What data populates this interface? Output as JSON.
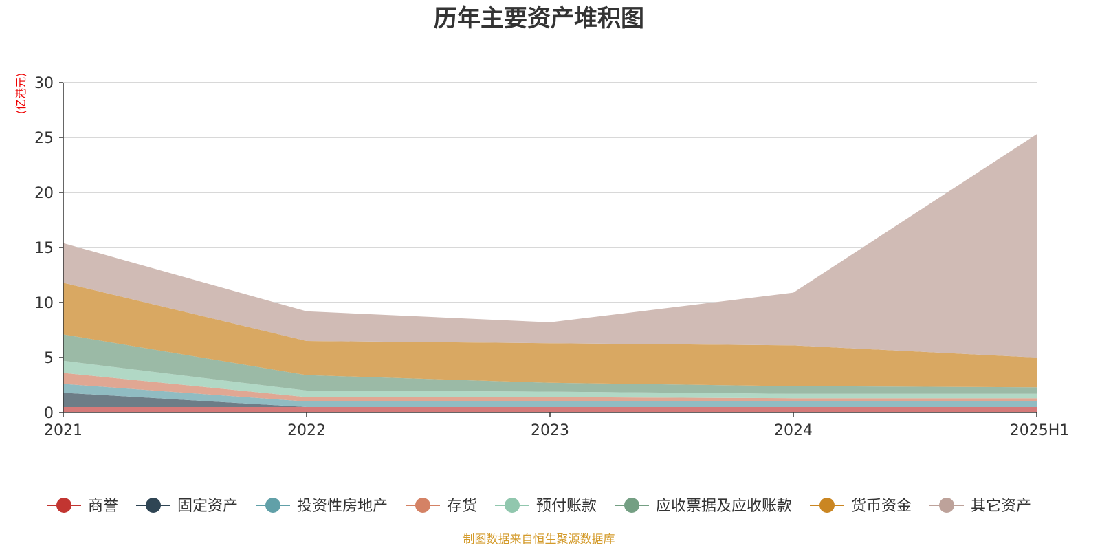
{
  "chart_data": {
    "type": "area",
    "title": "历年主要资产堆积图",
    "unit_label": "(亿港元)",
    "categories": [
      "2021",
      "2022",
      "2023",
      "2024",
      "2025H1"
    ],
    "ylim": [
      0,
      30
    ],
    "yticks": [
      "0",
      "5",
      "10",
      "15",
      "20",
      "25",
      "30"
    ],
    "grid": true,
    "legend_position": "bottom",
    "series": [
      {
        "name": "商誉",
        "values": [
          0.5,
          0.5,
          0.5,
          0.5,
          0.5
        ],
        "color": "#c23531",
        "fill": "#d57a79"
      },
      {
        "name": "固定资产",
        "values": [
          1.3,
          0.0,
          0.0,
          0.0,
          0.0
        ],
        "color": "#2f4554",
        "fill": "#6d7d87"
      },
      {
        "name": "投资性房地产",
        "values": [
          0.8,
          0.5,
          0.5,
          0.5,
          0.5
        ],
        "color": "#61a0a8",
        "fill": "#90bcc2"
      },
      {
        "name": "存货",
        "values": [
          1.0,
          0.4,
          0.4,
          0.3,
          0.3
        ],
        "color": "#d48265",
        "fill": "#e0a793"
      },
      {
        "name": "预付账款",
        "values": [
          1.1,
          0.6,
          0.5,
          0.4,
          0.4
        ],
        "color": "#91c7ae",
        "fill": "#b1d8c5"
      },
      {
        "name": "应收票据及应收账款",
        "values": [
          2.4,
          1.4,
          0.8,
          0.7,
          0.6
        ],
        "color": "#749f83",
        "fill": "#9bbaa6"
      },
      {
        "name": "货币资金",
        "values": [
          4.7,
          3.1,
          3.6,
          3.7,
          2.7
        ],
        "color": "#ca8622",
        "fill": "#d9a862"
      },
      {
        "name": "其它资产",
        "values": [
          3.6,
          2.7,
          1.9,
          4.8,
          20.3
        ],
        "color": "#bda29a",
        "fill": "#d0bbb5"
      }
    ],
    "source": "制图数据来自恒生聚源数据库"
  },
  "colors": {
    "unit_label": "#ee0000",
    "source": "#d39a2a",
    "axis": "#333333",
    "grid": "#cccccc"
  }
}
